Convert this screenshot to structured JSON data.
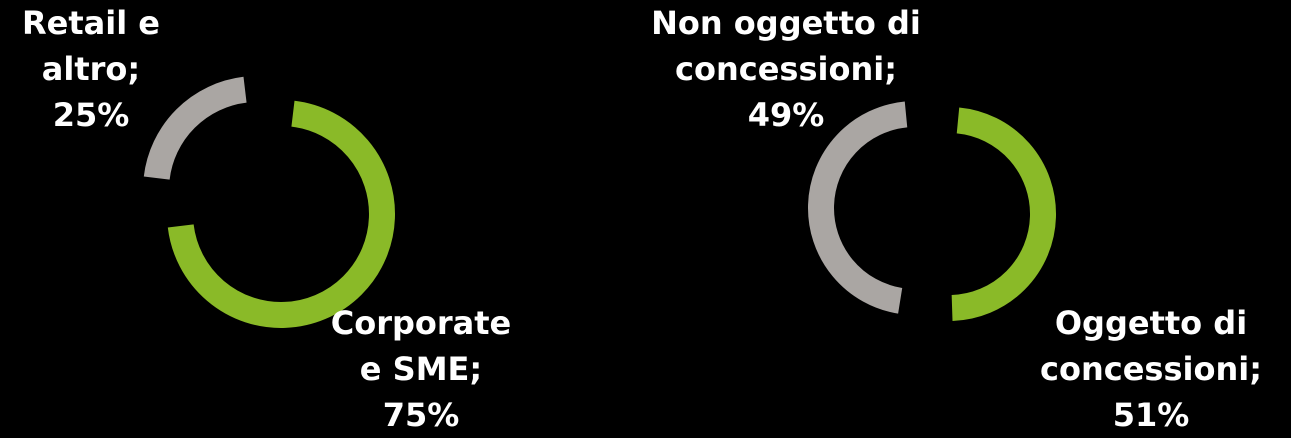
{
  "chart_data": [
    {
      "type": "pie",
      "variant": "donut",
      "slices": [
        {
          "label_lines": [
            "Corporate",
            "e SME;",
            "75%"
          ],
          "value": 75,
          "color": "#8aba28"
        },
        {
          "label_lines": [
            "Retail e",
            "altro;",
            "25%"
          ],
          "value": 25,
          "color": "#aaa6a3"
        }
      ]
    },
    {
      "type": "pie",
      "variant": "donut",
      "slices": [
        {
          "label_lines": [
            "Oggetto di",
            "concessioni;",
            "51%"
          ],
          "value": 51,
          "color": "#8aba28"
        },
        {
          "label_lines": [
            "Non oggetto di",
            "concessioni;",
            "49%"
          ],
          "value": 49,
          "color": "#aaa6a3"
        }
      ]
    }
  ]
}
